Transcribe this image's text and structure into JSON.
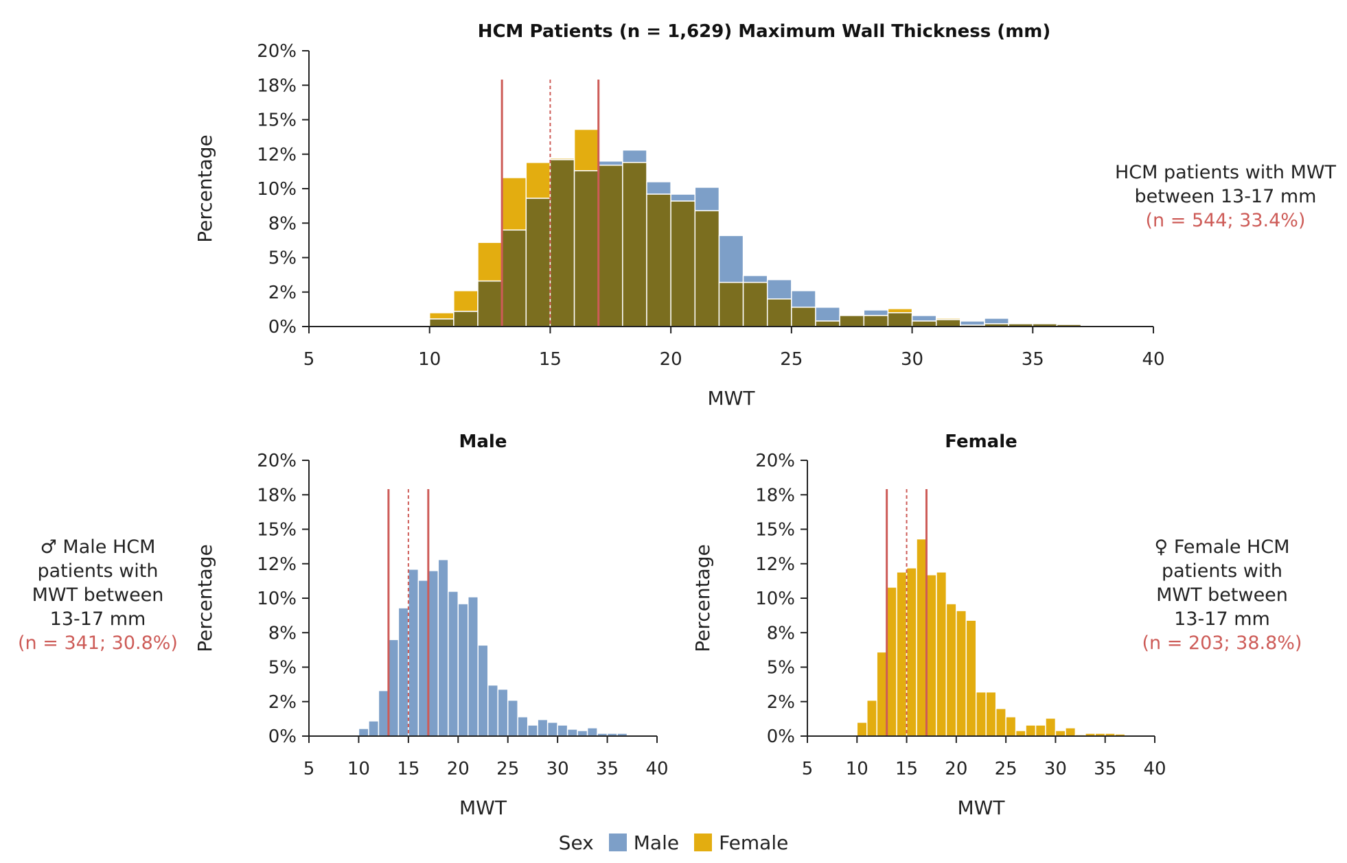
{
  "colors": {
    "male": "#7d9fc8",
    "female": "#e3ad10",
    "overlap": "#7b6e1f",
    "reference_line": "#cd5b57",
    "axis": "#222222"
  },
  "chart_data": [
    {
      "type": "bar",
      "title": "HCM Patients (n = 1,629) Maximum Wall Thickness (mm)",
      "xlabel": "MWT",
      "ylabel": "Percentage",
      "xlim": [
        5,
        40
      ],
      "ylim": [
        0,
        20
      ],
      "xticks": [
        "5",
        "10",
        "15",
        "20",
        "25",
        "30",
        "35",
        "40"
      ],
      "yticks": [
        "0%",
        "2%",
        "5%",
        "8%",
        "10%",
        "12%",
        "15%",
        "18%",
        "20%"
      ],
      "bin_width": 1,
      "reference_lines": [
        {
          "x": 13,
          "style": "solid"
        },
        {
          "x": 15,
          "style": "dashed"
        },
        {
          "x": 17,
          "style": "solid"
        }
      ],
      "x": [
        10.5,
        11.5,
        12.5,
        13.5,
        14.5,
        15.5,
        16.5,
        17.5,
        18.5,
        19.5,
        20.5,
        21.5,
        22.5,
        23.5,
        24.5,
        25.5,
        26.5,
        27.5,
        28.5,
        29.5,
        30.5,
        31.5,
        32.5,
        33.5,
        34.5,
        35.5,
        36.5
      ],
      "series": [
        {
          "name": "Male",
          "values": [
            0.55,
            1.1,
            3.3,
            7.0,
            9.3,
            12.1,
            11.3,
            12.0,
            12.8,
            10.5,
            9.6,
            10.1,
            6.6,
            3.7,
            3.4,
            2.6,
            1.4,
            0.8,
            1.2,
            1.0,
            0.8,
            0.5,
            0.4,
            0.6,
            0.2,
            0.2,
            0.2
          ]
        },
        {
          "name": "Female",
          "values": [
            1.0,
            2.6,
            6.1,
            10.8,
            11.9,
            12.2,
            14.3,
            11.7,
            11.9,
            9.6,
            9.1,
            8.4,
            3.2,
            3.2,
            2.0,
            1.4,
            0.4,
            0.8,
            0.8,
            1.3,
            0.4,
            0.6,
            0.1,
            0.2,
            0.2,
            0.2,
            0.15
          ]
        }
      ]
    },
    {
      "type": "bar",
      "title": "Male",
      "xlabel": "MWT",
      "ylabel": "Percentage",
      "xlim": [
        5,
        40
      ],
      "ylim": [
        0,
        20
      ],
      "xticks": [
        "5",
        "10",
        "15",
        "20",
        "25",
        "30",
        "35",
        "40"
      ],
      "yticks": [
        "0%",
        "2%",
        "5%",
        "8%",
        "10%",
        "12%",
        "15%",
        "18%",
        "20%"
      ],
      "bin_width": 1,
      "reference_lines": [
        {
          "x": 13,
          "style": "solid"
        },
        {
          "x": 15,
          "style": "dashed"
        },
        {
          "x": 17,
          "style": "solid"
        }
      ],
      "x": [
        10.5,
        11.5,
        12.5,
        13.5,
        14.5,
        15.5,
        16.5,
        17.5,
        18.5,
        19.5,
        20.5,
        21.5,
        22.5,
        23.5,
        24.5,
        25.5,
        26.5,
        27.5,
        28.5,
        29.5,
        30.5,
        31.5,
        32.5,
        33.5,
        34.5,
        35.5,
        36.5
      ],
      "series": [
        {
          "name": "Male",
          "values": [
            0.55,
            1.1,
            3.3,
            7.0,
            9.3,
            12.1,
            11.3,
            12.0,
            12.8,
            10.5,
            9.6,
            10.1,
            6.6,
            3.7,
            3.4,
            2.6,
            1.4,
            0.8,
            1.2,
            1.0,
            0.8,
            0.5,
            0.4,
            0.6,
            0.2,
            0.2,
            0.2
          ]
        }
      ]
    },
    {
      "type": "bar",
      "title": "Female",
      "xlabel": "MWT",
      "ylabel": "Percentage",
      "xlim": [
        5,
        40
      ],
      "ylim": [
        0,
        20
      ],
      "xticks": [
        "5",
        "10",
        "15",
        "20",
        "25",
        "30",
        "35",
        "40"
      ],
      "yticks": [
        "0%",
        "2%",
        "5%",
        "8%",
        "10%",
        "12%",
        "15%",
        "18%",
        "20%"
      ],
      "bin_width": 1,
      "reference_lines": [
        {
          "x": 13,
          "style": "solid"
        },
        {
          "x": 15,
          "style": "dashed"
        },
        {
          "x": 17,
          "style": "solid"
        }
      ],
      "x": [
        10.5,
        11.5,
        12.5,
        13.5,
        14.5,
        15.5,
        16.5,
        17.5,
        18.5,
        19.5,
        20.5,
        21.5,
        22.5,
        23.5,
        24.5,
        25.5,
        26.5,
        27.5,
        28.5,
        29.5,
        30.5,
        31.5,
        32.5,
        33.5,
        34.5,
        35.5,
        36.5
      ],
      "series": [
        {
          "name": "Female",
          "values": [
            1.0,
            2.6,
            6.1,
            10.8,
            11.9,
            12.2,
            14.3,
            11.7,
            11.9,
            9.6,
            9.1,
            8.4,
            3.2,
            3.2,
            2.0,
            1.4,
            0.4,
            0.8,
            0.8,
            1.3,
            0.4,
            0.6,
            0.1,
            0.2,
            0.2,
            0.2,
            0.15
          ]
        }
      ]
    }
  ],
  "annotations": {
    "overall": {
      "line1": "HCM patients with MWT",
      "line2": "between 13-17 mm",
      "highlight": "(n = 544; 33.4%)"
    },
    "male": {
      "symbol": "♂",
      "line1": "Male HCM",
      "line2": "patients with",
      "line3": "MWT between",
      "line4": "13-17 mm",
      "highlight": "(n = 341; 30.8%)"
    },
    "female": {
      "symbol": "♀",
      "line1": "Female HCM",
      "line2": "patients with",
      "line3": "MWT between",
      "line4": "13-17 mm",
      "highlight": "(n = 203; 38.8%)"
    }
  },
  "legend": {
    "title": "Sex",
    "items": [
      "Male",
      "Female"
    ]
  }
}
